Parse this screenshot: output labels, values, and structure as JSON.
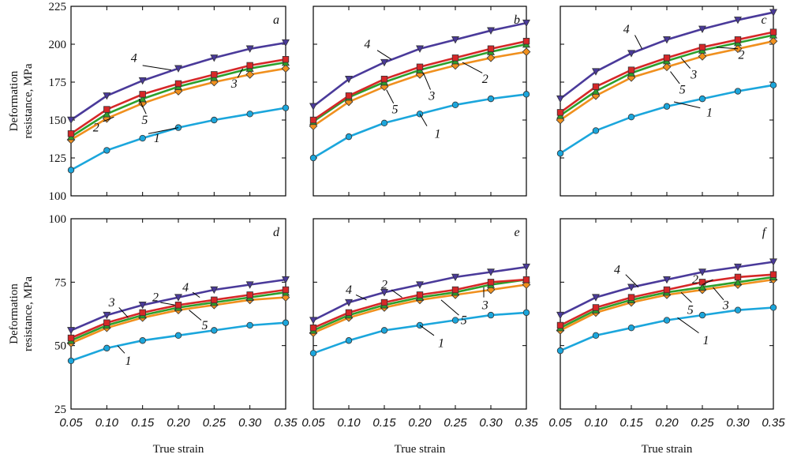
{
  "colors": {
    "1": "#1ba6dc",
    "2": "#d62728",
    "3": "#2ca02c",
    "4": "#4a3a9a",
    "5": "#f0901e",
    "marker_edge": "#333333",
    "frame": "#000000"
  },
  "markers": {
    "1": "circle",
    "2": "square",
    "3": "triangle-up",
    "4": "triangle-down",
    "5": "diamond"
  },
  "x_ticks": [
    "0.05",
    "0.10",
    "0.15",
    "0.20",
    "0.25",
    "0.30",
    "0.35"
  ],
  "xlabel": "True strain",
  "ylabel_line1": "Deformation",
  "ylabel_line2": "resistance, MPa",
  "rows": [
    {
      "ylim": [
        100,
        225
      ],
      "yticks": [
        "100",
        "125",
        "150",
        "175",
        "200",
        "225"
      ]
    },
    {
      "ylim": [
        25,
        100
      ],
      "yticks": [
        "25",
        "50",
        "75",
        "100"
      ]
    }
  ],
  "chart_data": [
    {
      "type": "line",
      "panel": "a",
      "title": "",
      "xlabel": "True strain",
      "ylabel": "Deformation resistance, MPa",
      "xlim": [
        0.05,
        0.35
      ],
      "ylim": [
        100,
        225
      ],
      "x": [
        0.05,
        0.1,
        0.15,
        0.2,
        0.25,
        0.3,
        0.35
      ],
      "series": [
        {
          "name": "1",
          "values": [
            117,
            130,
            138,
            145,
            150,
            154,
            158
          ]
        },
        {
          "name": "2",
          "values": [
            141,
            157,
            167,
            174,
            180,
            186,
            190
          ]
        },
        {
          "name": "3",
          "values": [
            139,
            154,
            164,
            172,
            178,
            184,
            188
          ]
        },
        {
          "name": "4",
          "values": [
            150,
            166,
            176,
            184,
            191,
            197,
            201
          ]
        },
        {
          "name": "5",
          "values": [
            137,
            151,
            161,
            169,
            175,
            180,
            184
          ]
        }
      ]
    },
    {
      "type": "line",
      "panel": "b",
      "title": "",
      "xlabel": "True strain",
      "ylabel": "Deformation resistance, MPa",
      "xlim": [
        0.05,
        0.35
      ],
      "ylim": [
        100,
        225
      ],
      "x": [
        0.05,
        0.1,
        0.15,
        0.2,
        0.25,
        0.3,
        0.35
      ],
      "series": [
        {
          "name": "1",
          "values": [
            125,
            139,
            148,
            154,
            160,
            164,
            167
          ]
        },
        {
          "name": "2",
          "values": [
            150,
            166,
            177,
            185,
            191,
            197,
            202
          ]
        },
        {
          "name": "3",
          "values": [
            149,
            165,
            175,
            183,
            189,
            195,
            200
          ]
        },
        {
          "name": "4",
          "values": [
            159,
            177,
            188,
            197,
            203,
            209,
            214
          ]
        },
        {
          "name": "5",
          "values": [
            146,
            162,
            172,
            180,
            186,
            191,
            195
          ]
        }
      ]
    },
    {
      "type": "line",
      "panel": "c",
      "title": "",
      "xlabel": "True strain",
      "ylabel": "Deformation resistance, MPa",
      "xlim": [
        0.05,
        0.35
      ],
      "ylim": [
        100,
        225
      ],
      "x": [
        0.05,
        0.1,
        0.15,
        0.2,
        0.25,
        0.3,
        0.35
      ],
      "series": [
        {
          "name": "1",
          "values": [
            128,
            143,
            152,
            159,
            164,
            169,
            173
          ]
        },
        {
          "name": "2",
          "values": [
            155,
            172,
            183,
            191,
            198,
            203,
            208
          ]
        },
        {
          "name": "3",
          "values": [
            153,
            169,
            181,
            189,
            196,
            201,
            206
          ]
        },
        {
          "name": "4",
          "values": [
            164,
            182,
            194,
            203,
            210,
            216,
            221
          ]
        },
        {
          "name": "5",
          "values": [
            150,
            166,
            178,
            185,
            192,
            197,
            202
          ]
        }
      ]
    },
    {
      "type": "line",
      "panel": "d",
      "title": "",
      "xlabel": "True strain",
      "ylabel": "Deformation resistance, MPa",
      "xlim": [
        0.05,
        0.35
      ],
      "ylim": [
        25,
        100
      ],
      "x": [
        0.05,
        0.1,
        0.15,
        0.2,
        0.25,
        0.3,
        0.35
      ],
      "series": [
        {
          "name": "1",
          "values": [
            44,
            49,
            52,
            54,
            56,
            58,
            59
          ]
        },
        {
          "name": "2",
          "values": [
            53,
            59,
            63,
            66,
            68,
            70,
            72
          ]
        },
        {
          "name": "3",
          "values": [
            52,
            58,
            62,
            65,
            67,
            69,
            71
          ]
        },
        {
          "name": "4",
          "values": [
            56,
            62,
            66,
            69,
            72,
            74,
            76
          ]
        },
        {
          "name": "5",
          "values": [
            51,
            57,
            61,
            64,
            66,
            68,
            69
          ]
        }
      ]
    },
    {
      "type": "line",
      "panel": "e",
      "title": "",
      "xlabel": "True strain",
      "ylabel": "Deformation resistance, MPa",
      "xlim": [
        0.05,
        0.35
      ],
      "ylim": [
        25,
        100
      ],
      "x": [
        0.05,
        0.1,
        0.15,
        0.2,
        0.25,
        0.3,
        0.35
      ],
      "series": [
        {
          "name": "1",
          "values": [
            47,
            52,
            56,
            58,
            60,
            62,
            63
          ]
        },
        {
          "name": "2",
          "values": [
            57,
            63,
            67,
            70,
            72,
            75,
            76
          ]
        },
        {
          "name": "3",
          "values": [
            56,
            62,
            66,
            69,
            71,
            74,
            76
          ]
        },
        {
          "name": "4",
          "values": [
            60,
            67,
            71,
            74,
            77,
            79,
            81
          ]
        },
        {
          "name": "5",
          "values": [
            55,
            61,
            65,
            68,
            70,
            72,
            74
          ]
        }
      ]
    },
    {
      "type": "line",
      "panel": "f",
      "title": "",
      "xlabel": "True strain",
      "ylabel": "Deformation resistance, MPa",
      "xlim": [
        0.05,
        0.35
      ],
      "ylim": [
        25,
        100
      ],
      "x": [
        0.05,
        0.1,
        0.15,
        0.2,
        0.25,
        0.3,
        0.35
      ],
      "series": [
        {
          "name": "1",
          "values": [
            48,
            54,
            57,
            60,
            62,
            64,
            65
          ]
        },
        {
          "name": "2",
          "values": [
            58,
            65,
            69,
            72,
            75,
            77,
            78
          ]
        },
        {
          "name": "3",
          "values": [
            57,
            64,
            68,
            71,
            73,
            75,
            77
          ]
        },
        {
          "name": "4",
          "values": [
            62,
            69,
            73,
            76,
            79,
            81,
            83
          ]
        },
        {
          "name": "5",
          "values": [
            56,
            63,
            67,
            70,
            72,
            74,
            76
          ]
        }
      ]
    }
  ]
}
